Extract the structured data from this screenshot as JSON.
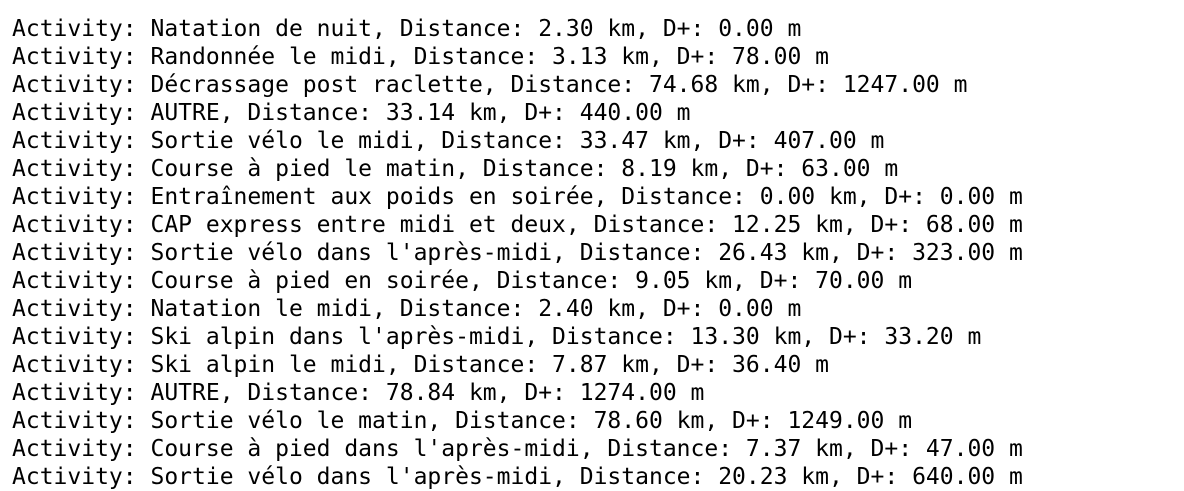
{
  "console": {
    "lines": [
      "Activity: Natation de nuit, Distance: 2.30 km, D+: 0.00 m",
      "Activity: Randonnée le midi, Distance: 3.13 km, D+: 78.00 m",
      "Activity: Décrassage post raclette, Distance: 74.68 km, D+: 1247.00 m",
      "Activity: AUTRE, Distance: 33.14 km, D+: 440.00 m",
      "Activity: Sortie vélo le midi, Distance: 33.47 km, D+: 407.00 m",
      "Activity: Course à pied le matin, Distance: 8.19 km, D+: 63.00 m",
      "Activity: Entraînement aux poids en soirée, Distance: 0.00 km, D+: 0.00 m",
      "Activity: CAP express entre midi et deux, Distance: 12.25 km, D+: 68.00 m",
      "Activity: Sortie vélo dans l'après-midi, Distance: 26.43 km, D+: 323.00 m",
      "Activity: Course à pied en soirée, Distance: 9.05 km, D+: 70.00 m",
      "Activity: Natation le midi, Distance: 2.40 km, D+: 0.00 m",
      "Activity: Ski alpin dans l'après-midi, Distance: 13.30 km, D+: 33.20 m",
      "Activity: Ski alpin le midi, Distance: 7.87 km, D+: 36.40 m",
      "Activity: AUTRE, Distance: 78.84 km, D+: 1274.00 m",
      "Activity: Sortie vélo le matin, Distance: 78.60 km, D+: 1249.00 m",
      "Activity: Course à pied dans l'après-midi, Distance: 7.37 km, D+: 47.00 m",
      "Activity: Sortie vélo dans l'après-midi, Distance: 20.23 km, D+: 640.00 m"
    ]
  }
}
